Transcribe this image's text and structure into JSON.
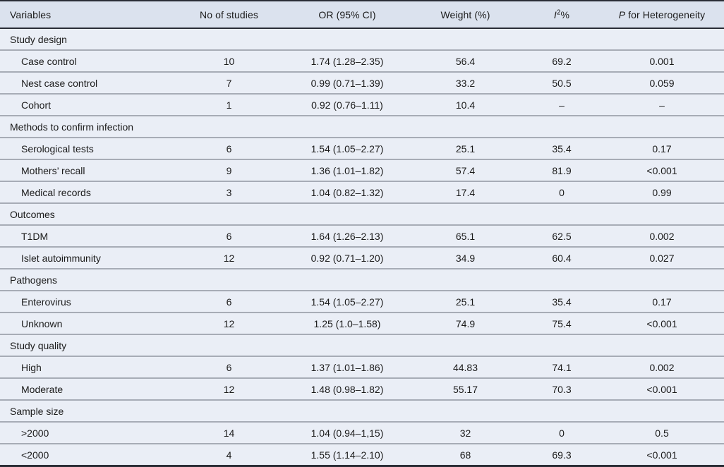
{
  "colors": {
    "header_bg": "#dbe2ee",
    "row_bg": "#eaeef6",
    "rule_dark": "#2a2d36",
    "rule_light": "#a7acb6",
    "text": "#1b1b1b"
  },
  "table": {
    "columns": [
      {
        "name": "variables",
        "align": "left",
        "segments": [
          {
            "t": "text",
            "v": "Variables"
          }
        ]
      },
      {
        "name": "no-of-studies",
        "segments": [
          {
            "t": "text",
            "v": "No of studies"
          }
        ]
      },
      {
        "name": "or-ci",
        "segments": [
          {
            "t": "text",
            "v": "OR (95% CI)"
          }
        ]
      },
      {
        "name": "weight",
        "segments": [
          {
            "t": "text",
            "v": "Weight (%)"
          }
        ]
      },
      {
        "name": "i2",
        "segments": [
          {
            "t": "italic",
            "v": "I"
          },
          {
            "t": "sup",
            "v": "2"
          },
          {
            "t": "text",
            "v": "%"
          }
        ]
      },
      {
        "name": "p-heterogeneity",
        "segments": [
          {
            "t": "italic",
            "v": "P"
          },
          {
            "t": "text",
            "v": " for Heterogeneity"
          }
        ]
      }
    ],
    "rows": [
      {
        "type": "section",
        "label": "Study design"
      },
      {
        "type": "data",
        "label": "Case control",
        "values": [
          "10",
          "1.74 (1.28–2.35)",
          "56.4",
          "69.2",
          "0.001"
        ]
      },
      {
        "type": "data",
        "label": "Nest case control",
        "values": [
          "7",
          "0.99 (0.71–1.39)",
          "33.2",
          "50.5",
          "0.059"
        ]
      },
      {
        "type": "data",
        "label": "Cohort",
        "values": [
          "1",
          "0.92 (0.76–1.11)",
          "10.4",
          "–",
          "–"
        ]
      },
      {
        "type": "section",
        "label": "Methods to confirm infection"
      },
      {
        "type": "data",
        "label": "Serological tests",
        "values": [
          "6",
          "1.54 (1.05–2.27)",
          "25.1",
          "35.4",
          "0.17"
        ]
      },
      {
        "type": "data",
        "label": "Mothers’ recall",
        "values": [
          "9",
          "1.36 (1.01–1.82)",
          "57.4",
          "81.9",
          "<0.001"
        ]
      },
      {
        "type": "data",
        "label": "Medical records",
        "values": [
          "3",
          "1.04 (0.82–1.32)",
          "17.4",
          "0",
          "0.99"
        ]
      },
      {
        "type": "section",
        "label": "Outcomes"
      },
      {
        "type": "data",
        "label": "T1DM",
        "values": [
          "6",
          "1.64 (1.26–2.13)",
          "65.1",
          "62.5",
          "0.002"
        ]
      },
      {
        "type": "data",
        "label": "Islet autoimmunity",
        "values": [
          "12",
          "0.92 (0.71–1.20)",
          "34.9",
          "60.4",
          "0.027"
        ]
      },
      {
        "type": "section",
        "label": "Pathogens"
      },
      {
        "type": "data",
        "label": "Enterovirus",
        "values": [
          "6",
          "1.54 (1.05–2.27)",
          "25.1",
          "35.4",
          "0.17"
        ]
      },
      {
        "type": "data",
        "label": "Unknown",
        "values": [
          "12",
          "1.25 (1.0–1.58)",
          "74.9",
          "75.4",
          "<0.001"
        ]
      },
      {
        "type": "section",
        "label": "Study quality"
      },
      {
        "type": "data",
        "label": "High",
        "values": [
          "6",
          "1.37 (1.01–1.86)",
          "44.83",
          "74.1",
          "0.002"
        ]
      },
      {
        "type": "data",
        "label": "Moderate",
        "values": [
          "12",
          "1.48 (0.98–1.82)",
          "55.17",
          "70.3",
          "<0.001"
        ]
      },
      {
        "type": "section",
        "label": "Sample size"
      },
      {
        "type": "data",
        "label": ">2000",
        "values": [
          "14",
          "1.04 (0.94–1,15)",
          "32",
          "0",
          "0.5"
        ]
      },
      {
        "type": "data",
        "label": "<2000",
        "values": [
          "4",
          "1.55 (1.14–2.10)",
          "68",
          "69.3",
          "<0.001"
        ]
      }
    ]
  }
}
